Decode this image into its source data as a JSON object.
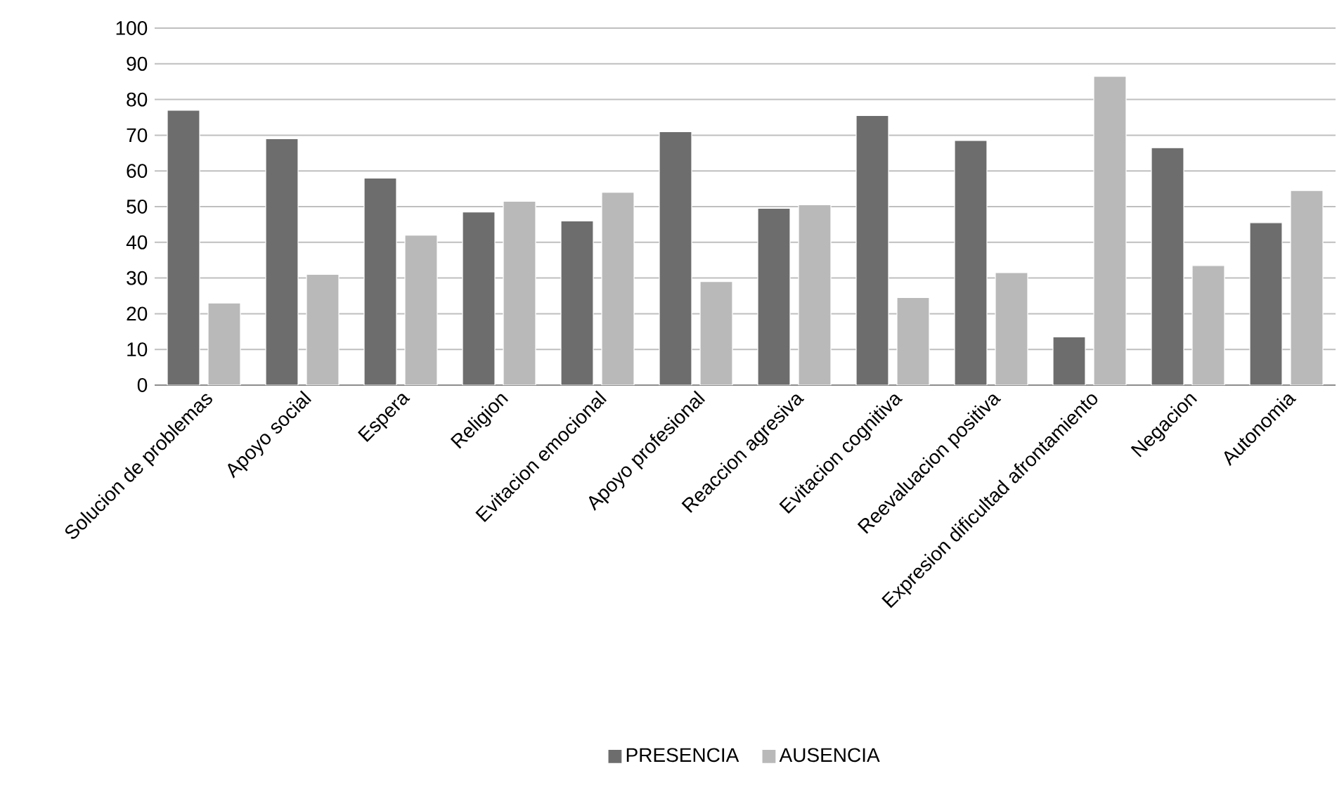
{
  "chart_data": {
    "type": "bar",
    "categories": [
      "Solucion de problemas",
      "Apoyo social",
      "Espera",
      "Religion",
      "Evitacion emocional",
      "Apoyo profesional",
      "Reaccion agresiva",
      "Evitacion cognitiva",
      "Reevaluacion positiva",
      "Expresion dificultad afrontamiento",
      "Negacion",
      "Autonomia"
    ],
    "series": [
      {
        "name": "PRESENCIA",
        "color": "#6d6d6d",
        "values": [
          77,
          69,
          58,
          48.5,
          46,
          71,
          49.5,
          75.5,
          68.5,
          13.5,
          66.5,
          45.5
        ]
      },
      {
        "name": "AUSENCIA",
        "color": "#b9b9b9",
        "values": [
          23,
          31,
          42,
          51.5,
          54,
          29,
          50.5,
          24.5,
          31.5,
          86.5,
          33.5,
          54.5
        ]
      }
    ],
    "ylim": [
      0,
      100
    ],
    "yticks": [
      0,
      10,
      20,
      30,
      40,
      50,
      60,
      70,
      80,
      90,
      100
    ],
    "grid": "y",
    "legend": "bottom"
  }
}
